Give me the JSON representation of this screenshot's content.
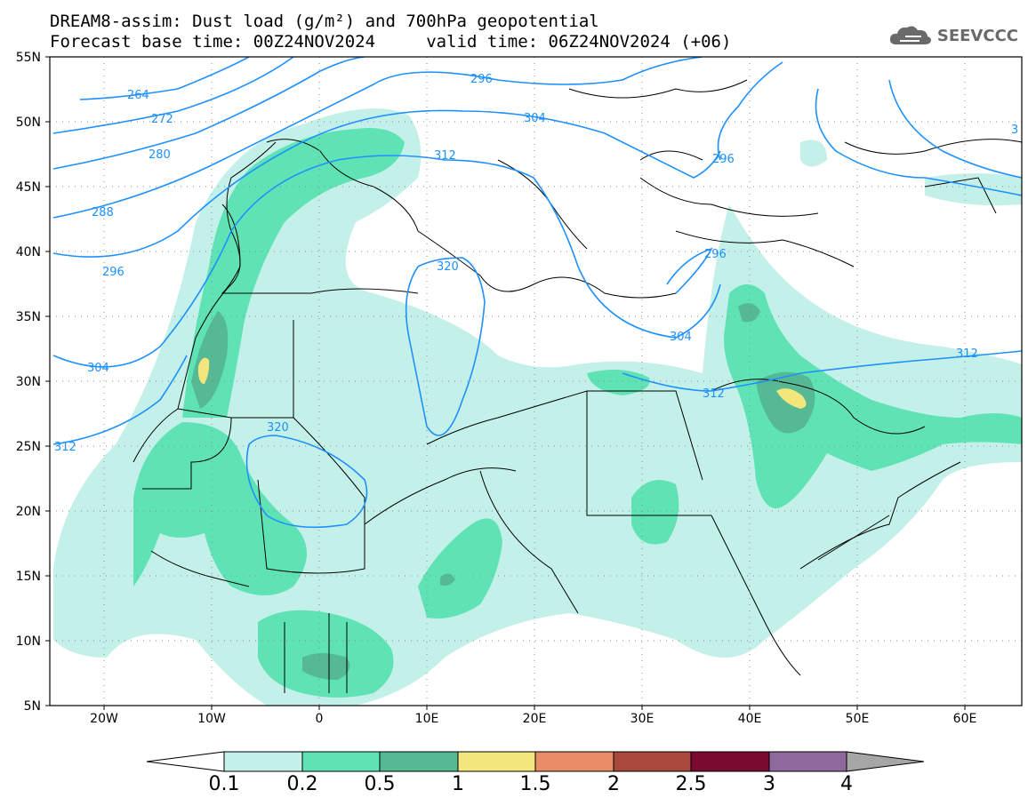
{
  "title": {
    "line1": "DREAM8-assim: Dust load (g/m²) and 700hPa geopotential",
    "line2": "Forecast base time: 00Z24NOV2024     valid time: 06Z24NOV2024 (+06)"
  },
  "logo": {
    "text": "SEEVCCC",
    "icon": "cloud-icon"
  },
  "axes": {
    "lat_labels": [
      "55N",
      "50N",
      "45N",
      "40N",
      "35N",
      "30N",
      "25N",
      "20N",
      "15N",
      "10N",
      "5N"
    ],
    "lon_labels": [
      "20W",
      "10W",
      "0",
      "10E",
      "20E",
      "30E",
      "40E",
      "50E",
      "60E"
    ]
  },
  "contour_labels": [
    "264",
    "272",
    "280",
    "288",
    "296",
    "304",
    "312",
    "320",
    "296",
    "304",
    "312",
    "296",
    "304",
    "312",
    "320",
    "296",
    "312",
    "3"
  ],
  "colorbar": {
    "labels": [
      "0.1",
      "0.2",
      "0.5",
      "1",
      "1.5",
      "2",
      "2.5",
      "3",
      "4"
    ],
    "colors": [
      "#c4f0ea",
      "#5fe3b4",
      "#55b994",
      "#f2e67c",
      "#e98d68",
      "#a8493c",
      "#7b0a30",
      "#8f699c",
      "#a6a6a6"
    ]
  },
  "colors": {
    "geopotential": "#1e90ff",
    "border": "#000000"
  }
}
